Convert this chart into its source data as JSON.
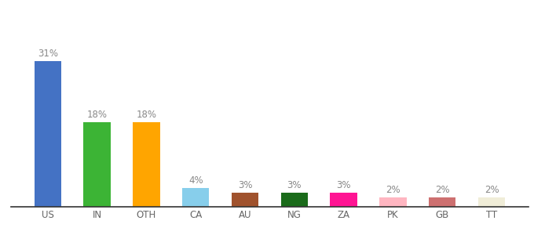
{
  "categories": [
    "US",
    "IN",
    "OTH",
    "CA",
    "AU",
    "NG",
    "ZA",
    "PK",
    "GB",
    "TT"
  ],
  "values": [
    31,
    18,
    18,
    4,
    3,
    3,
    3,
    2,
    2,
    2
  ],
  "bar_colors": [
    "#4472C4",
    "#3CB435",
    "#FFA500",
    "#87CEEB",
    "#A0522D",
    "#1A6B1A",
    "#FF1493",
    "#FFB6C1",
    "#CD7070",
    "#F0EDD8"
  ],
  "ylim": [
    0,
    38
  ],
  "background_color": "#ffffff",
  "label_fontsize": 8.5,
  "tick_fontsize": 8.5,
  "label_color": "#888888"
}
